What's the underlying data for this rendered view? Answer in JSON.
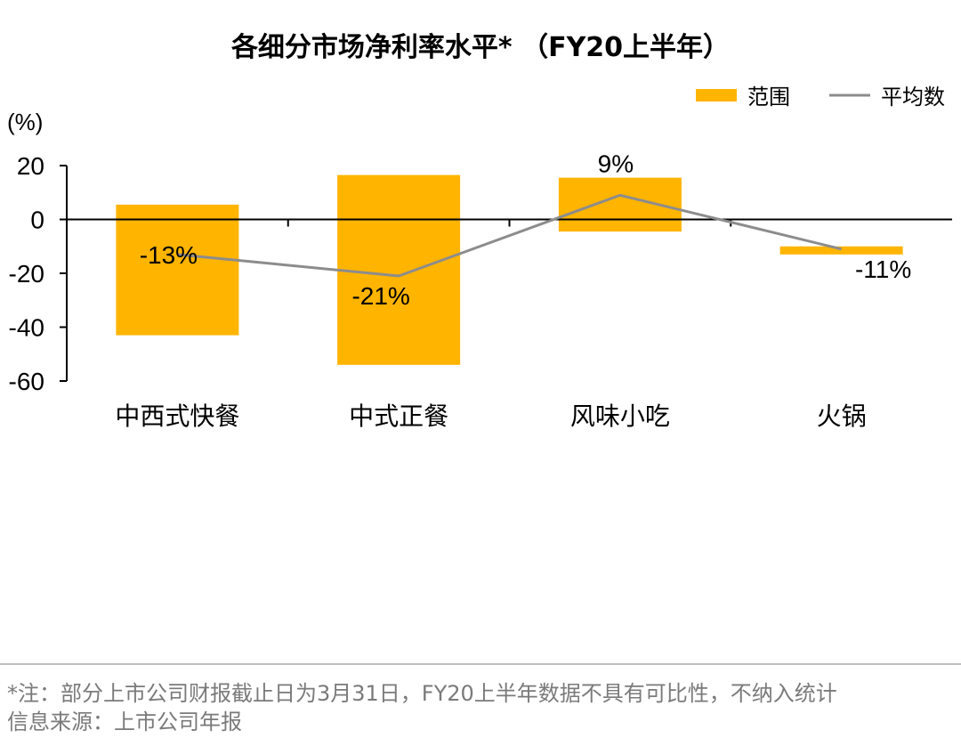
{
  "chart_data": {
    "type": "bar",
    "title": "各细分市场净利率水平* （FY20上半年）",
    "ylabel": "(%)",
    "ylim": [
      -60,
      20
    ],
    "yticks": [
      20,
      0,
      -20,
      -40,
      -60
    ],
    "categories": [
      "中西式快餐",
      "中式正餐",
      "风味小吃",
      "火锅"
    ],
    "series": [
      {
        "name": "范围",
        "kind": "range-bar",
        "low": [
          -43,
          -54,
          -4.5,
          -13
        ],
        "high": [
          5.5,
          16.5,
          15.5,
          -10
        ],
        "color": "#FFB400"
      },
      {
        "name": "平均数",
        "kind": "line",
        "values": [
          -13,
          -21,
          9,
          -11
        ],
        "labels": [
          "-13%",
          "-21%",
          "9%",
          "-11%"
        ],
        "color": "#8c8c8c"
      }
    ],
    "legend": "top-right"
  },
  "footer": {
    "note": "*注：部分上市公司财报截止日为3月31日，FY20上半年数据不具有可比性，不纳入统计",
    "source": "信息来源：上市公司年报"
  }
}
